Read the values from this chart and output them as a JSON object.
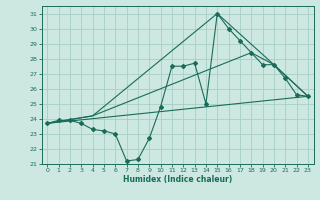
{
  "xlabel": "Humidex (Indice chaleur)",
  "ylabel": "",
  "xlim": [
    -0.5,
    23.5
  ],
  "ylim": [
    21,
    31.5
  ],
  "yticks": [
    21,
    22,
    23,
    24,
    25,
    26,
    27,
    28,
    29,
    30,
    31
  ],
  "xticks": [
    0,
    1,
    2,
    3,
    4,
    5,
    6,
    7,
    8,
    9,
    10,
    11,
    12,
    13,
    14,
    15,
    16,
    17,
    18,
    19,
    20,
    21,
    22,
    23
  ],
  "bg_color": "#cce8e0",
  "grid_color": "#a8cfc4",
  "line_color": "#1a6b5a",
  "line1_x": [
    0,
    1,
    2,
    3,
    4,
    5,
    6,
    7,
    8,
    9,
    10,
    11,
    12,
    13,
    14,
    15,
    16,
    17,
    18,
    19,
    20,
    21,
    22,
    23
  ],
  "line1_y": [
    23.7,
    23.9,
    23.9,
    23.7,
    23.3,
    23.2,
    23.0,
    21.2,
    21.3,
    22.7,
    24.8,
    27.5,
    27.5,
    27.7,
    25.0,
    31.0,
    30.0,
    29.2,
    28.4,
    27.6,
    27.6,
    26.7,
    25.6,
    25.5
  ],
  "line2_x": [
    0,
    4,
    15,
    20,
    23
  ],
  "line2_y": [
    23.7,
    24.2,
    31.0,
    27.6,
    25.5
  ],
  "line3_x": [
    0,
    4,
    18,
    20,
    23
  ],
  "line3_y": [
    23.7,
    24.2,
    28.4,
    27.6,
    25.5
  ],
  "line4_x": [
    0,
    23
  ],
  "line4_y": [
    23.7,
    25.5
  ]
}
